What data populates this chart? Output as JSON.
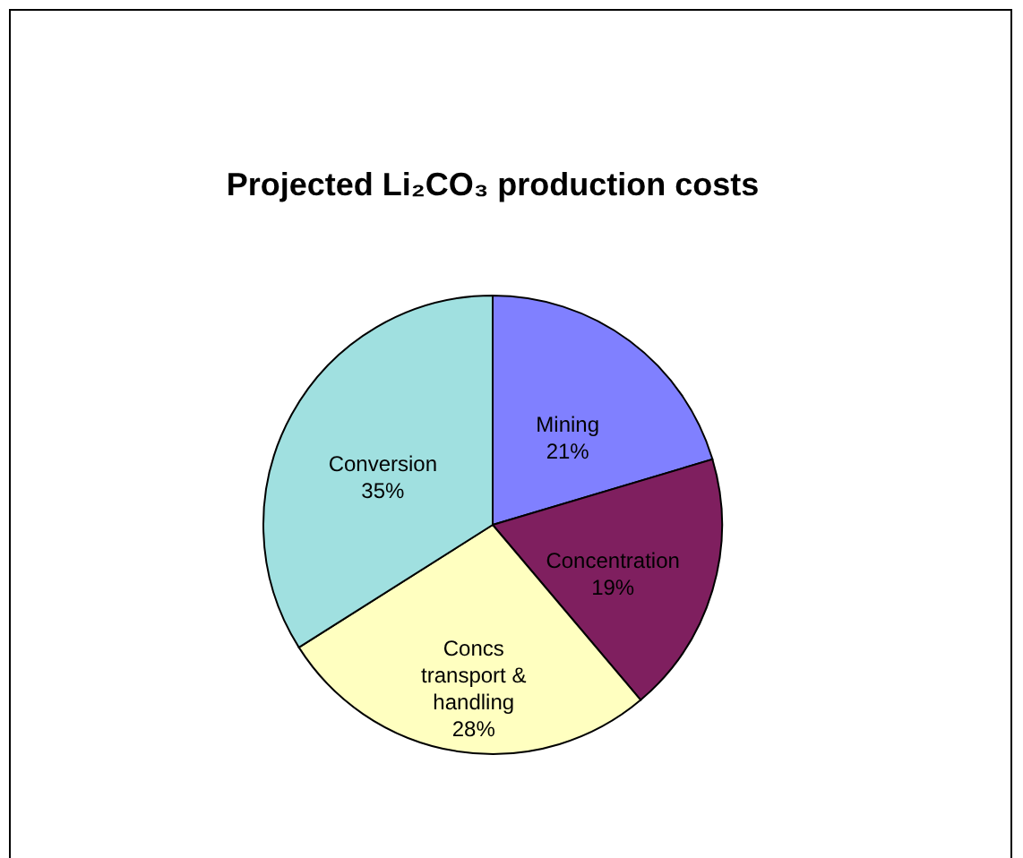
{
  "chart_data": {
    "type": "pie",
    "title": "Projected Li₂CO₃ production costs",
    "categories": [
      "Mining",
      "Concentration",
      "Concs transport & handling",
      "Conversion"
    ],
    "values": [
      21,
      19,
      28,
      35
    ],
    "colors": [
      "#8080ff",
      "#7f1f5f",
      "#ffffc0",
      "#a0e0e0"
    ],
    "value_labels": [
      "21%",
      "19%",
      "28%",
      "35%"
    ],
    "legend": false
  }
}
